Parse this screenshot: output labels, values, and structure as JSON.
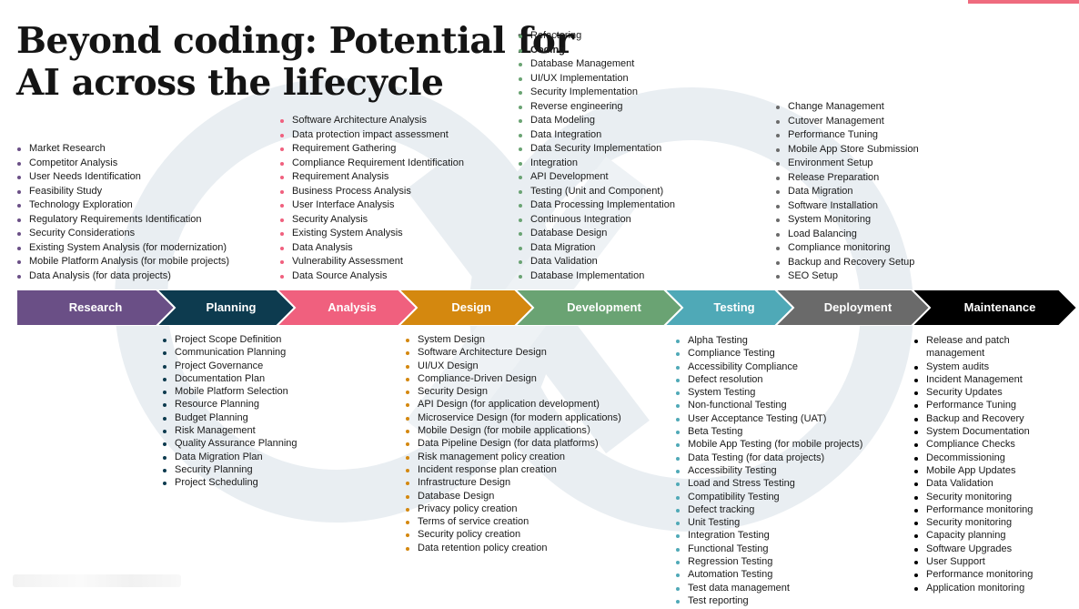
{
  "title": {
    "line1": "Beyond coding: Potential for",
    "line2": "AI across the lifecycle"
  },
  "colors": {
    "research": "#6a4f86",
    "planning": "#0d3b4f",
    "analysis": "#f0607e",
    "design": "#d4880f",
    "development": "#6aa373",
    "testing": "#4fa9b7",
    "deployment": "#6a6a6a",
    "maintenance": "#000000",
    "accent": "#ef6b7e",
    "watermark": "#e9eef2"
  },
  "stages": [
    {
      "label": "Research",
      "icon": "chevron-arrow"
    },
    {
      "label": "Planning",
      "icon": "chevron-arrow"
    },
    {
      "label": "Analysis",
      "icon": "chevron-arrow"
    },
    {
      "label": "Design",
      "icon": "chevron-arrow"
    },
    {
      "label": "Development",
      "icon": "chevron-arrow"
    },
    {
      "label": "Testing",
      "icon": "chevron-arrow"
    },
    {
      "label": "Deployment",
      "icon": "chevron-arrow"
    },
    {
      "label": "Maintenance",
      "icon": "chevron-arrow"
    }
  ],
  "research_items": [
    "Market Research",
    "Competitor Analysis",
    "User Needs Identification",
    "Feasibility Study",
    "Technology Exploration",
    "Regulatory Requirements Identification",
    "Security Considerations",
    "Existing System Analysis (for modernization)",
    "Mobile Platform Analysis (for mobile projects)",
    "Data Analysis (for data projects)"
  ],
  "planning_items": [
    "Project Scope Definition",
    "Communication Planning",
    "Project Governance",
    "Documentation Plan",
    "Mobile Platform Selection",
    "Resource Planning",
    "Budget Planning",
    "Risk Management",
    "Quality Assurance Planning",
    "Data Migration Plan",
    "Security Planning",
    "Project Scheduling"
  ],
  "analysis_items": [
    "Software Architecture Analysis",
    "Data protection impact assessment",
    "Requirement Gathering",
    "Compliance Requirement Identification",
    "Requirement Analysis",
    "Business Process Analysis",
    "User Interface Analysis",
    "Security Analysis",
    "Existing System Analysis",
    "Data Analysis",
    "Vulnerability Assessment",
    "Data Source Analysis"
  ],
  "design_items": [
    "System Design",
    "Software Architecture Design",
    "UI/UX Design",
    "Compliance-Driven Design",
    "Security Design",
    "API Design (for application development)",
    "Microservice Design (for modern applications)",
    "Mobile Design (for mobile applications）",
    "Data Pipeline Design (for data platforms)",
    "Risk management policy creation",
    "Incident response plan creation",
    "Infrastructure Design",
    "Database Design",
    "Privacy policy creation",
    "Terms of service creation",
    "Security policy creation",
    "Data retention policy creation"
  ],
  "development_items": [
    "Refactoring",
    "Coding",
    "Database Management",
    "UI/UX Implementation",
    "Security Implementation",
    "Reverse engineering",
    "Data Modeling",
    "Data Integration",
    "Data Security Implementation",
    "Integration",
    "API Development",
    "Testing (Unit and Component)",
    "Data Processing Implementation",
    "Continuous Integration",
    "Database Design",
    "Data Migration",
    "Data Validation",
    "Database Implementation"
  ],
  "testing_items": [
    "Alpha Testing",
    "Compliance Testing",
    "Accessibility Compliance",
    "Defect resolution",
    "System Testing",
    "Non-functional Testing",
    "User Acceptance Testing (UAT)",
    "Beta Testing",
    "Mobile App Testing (for mobile projects)",
    "Data Testing (for data projects)",
    "Accessibility Testing",
    "Load and Stress Testing",
    "Compatibility Testing",
    "Defect tracking",
    "Unit Testing",
    "Integration Testing",
    "Functional Testing",
    "Regression Testing",
    "Automation Testing",
    "Test data management",
    "Test reporting"
  ],
  "deployment_items": [
    "Change Management",
    "Cutover Management",
    "Performance Tuning",
    "Mobile App Store Submission",
    "Environment Setup",
    "Release Preparation",
    "Data Migration",
    "Software Installation",
    "System Monitoring",
    "Load Balancing",
    "Compliance monitoring",
    "Backup and Recovery Setup",
    "SEO Setup"
  ],
  "maintenance_items": [
    "Release and patch management",
    "System audits",
    "Incident Management",
    "Security Updates",
    "Performance Tuning",
    "Backup and Recovery",
    "System Documentation",
    "Compliance Checks",
    "Decommissioning",
    "Mobile App Updates",
    "Data Validation",
    "Security monitoring",
    "Performance monitoring",
    "Security monitoring",
    "Capacity planning",
    "Software Upgrades",
    "User Support",
    "Performance monitoring",
    "Application monitoring"
  ]
}
